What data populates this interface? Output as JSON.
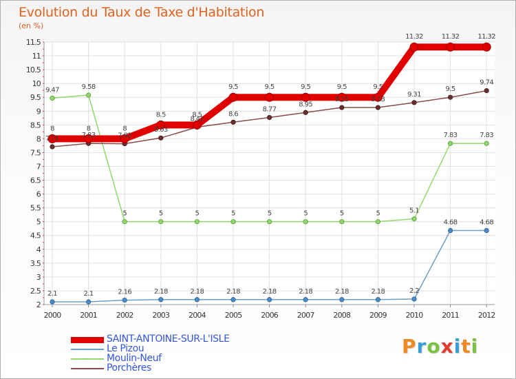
{
  "chart_data": {
    "type": "line",
    "title": "Evolution du Taux de Taxe d'Habitation",
    "ylabel": "(en %)",
    "xlabel": "",
    "ylim": [
      2,
      11.5
    ],
    "yticks": [
      "2",
      "2.5",
      "3",
      "3.5",
      "4",
      "4.5",
      "5",
      "5.5",
      "6",
      "6.5",
      "7",
      "7.5",
      "8",
      "8.5",
      "9",
      "9.5",
      "10",
      "10.5",
      "11",
      "11.5"
    ],
    "x": [
      "2000",
      "2001",
      "2002",
      "2003",
      "2004",
      "2005",
      "2006",
      "2007",
      "2008",
      "2009",
      "2010",
      "2011",
      "2012"
    ],
    "series": [
      {
        "name": "SAINT-ANTOINE-SUR-L'ISLE",
        "color": "#e00000",
        "values": [
          8,
          8,
          8,
          8.5,
          8.5,
          9.5,
          9.5,
          9.5,
          9.5,
          9.5,
          11.32,
          11.32,
          11.32
        ],
        "labels": [
          "8",
          "8",
          "8",
          "8.5",
          "8.5",
          "9.5",
          "9.5",
          "9.5",
          "9.5",
          "9.5",
          "11.32",
          "11.32",
          "11.32"
        ]
      },
      {
        "name": "Le Pizou",
        "color": "#6a9ec9",
        "values": [
          2.1,
          2.1,
          2.16,
          2.18,
          2.18,
          2.18,
          2.18,
          2.18,
          2.18,
          2.18,
          2.2,
          4.68,
          4.68
        ],
        "labels": [
          "2.1",
          "2.1",
          "2.16",
          "2.18",
          "2.18",
          "2.18",
          "2.18",
          "2.18",
          "2.18",
          "2.18",
          "2.2",
          "4.68",
          "4.68"
        ]
      },
      {
        "name": "Moulin-Neuf",
        "color": "#8fd96a",
        "values": [
          9.47,
          9.58,
          5,
          5,
          5,
          5,
          5,
          5,
          5,
          5,
          5.1,
          7.83,
          7.83
        ],
        "labels": [
          "9.47",
          "9.58",
          "5",
          "5",
          "5",
          "5",
          "5",
          "5",
          "5",
          "5",
          "5.1",
          "7.83",
          "7.83"
        ]
      },
      {
        "name": "Porchères",
        "color": "#8b4a4a",
        "values": [
          7.71,
          7.83,
          7.82,
          8.03,
          8.42,
          8.6,
          8.77,
          8.95,
          9.13,
          9.13,
          9.31,
          9.5,
          9.74
        ],
        "labels": [
          "7.71",
          "7.83",
          "7.82",
          "8.03",
          "8.42",
          "8.6",
          "8.77",
          "8.95",
          "9.13",
          "9.13",
          "9.31",
          "9.5",
          "9.74"
        ]
      }
    ]
  },
  "brand": {
    "text": "Proxiti",
    "colors": [
      "#f08a24",
      "#3a9fd8",
      "#7cc242",
      "#e03c31",
      "#3a9fd8",
      "#f08a24",
      "#7cc242"
    ]
  }
}
